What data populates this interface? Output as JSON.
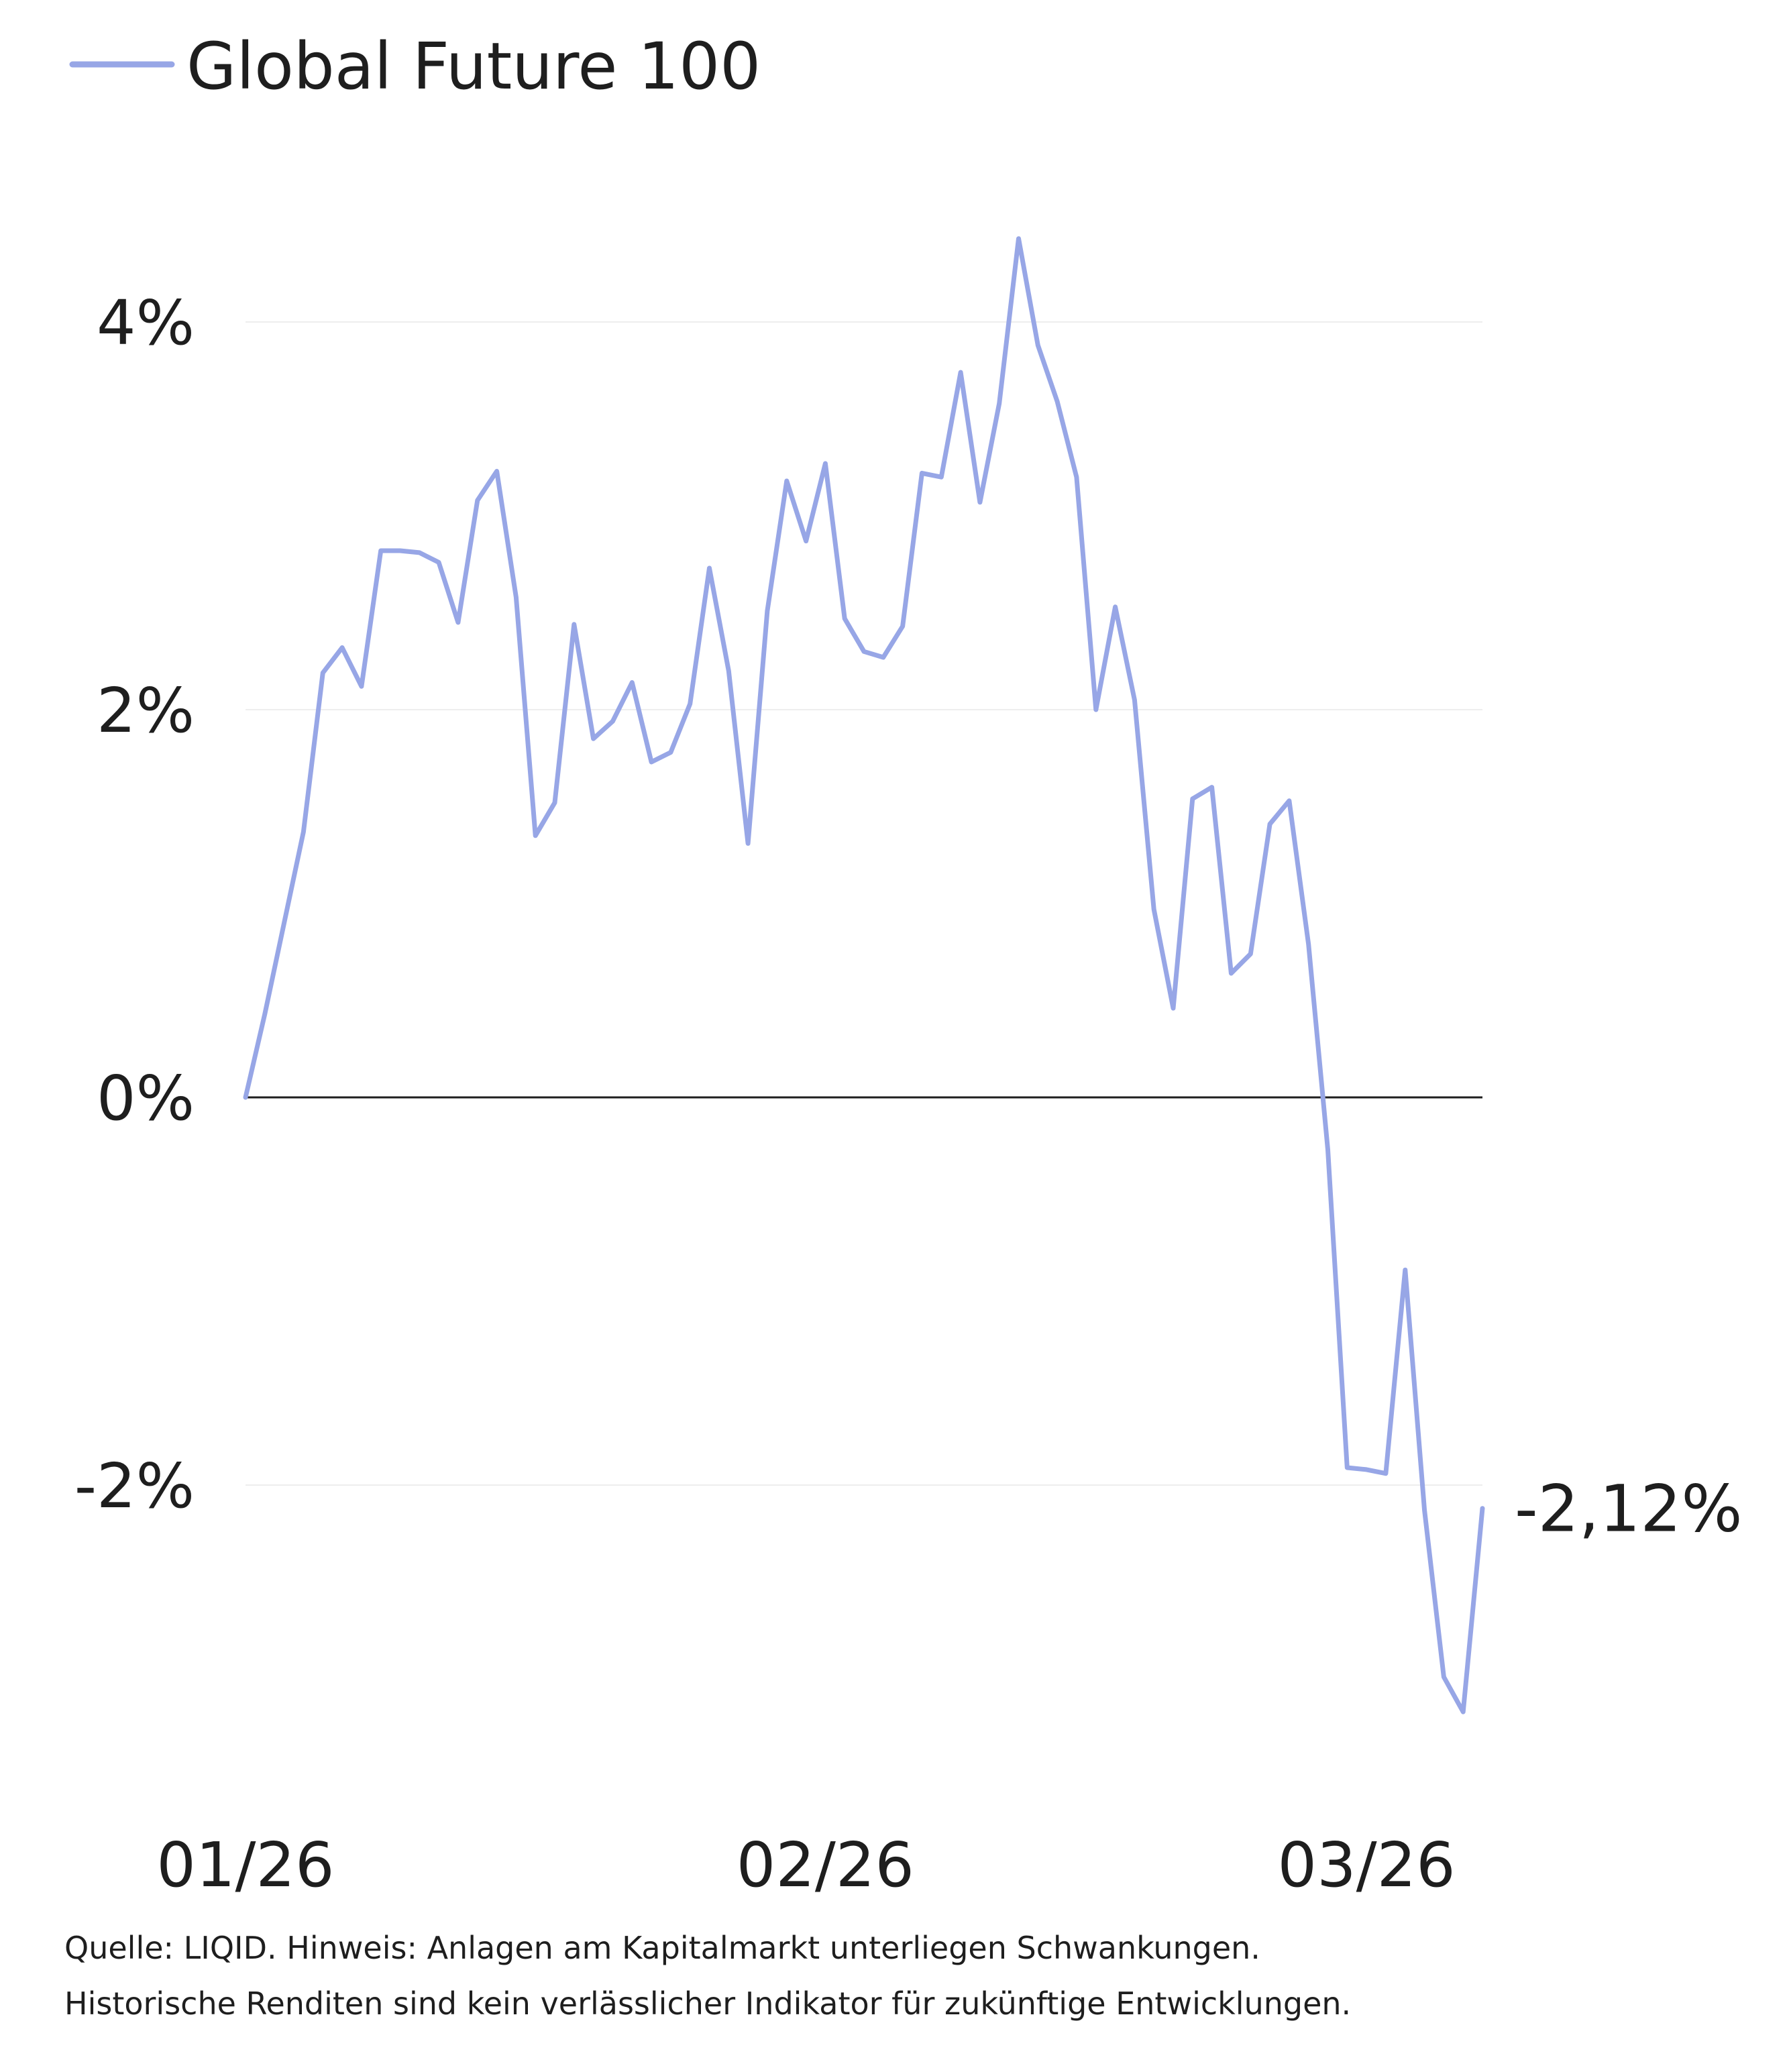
{
  "chart_data": {
    "type": "line",
    "legend": {
      "position": "top-left"
    },
    "grid": true,
    "ylim": [
      -3.55,
      4.6
    ],
    "y_ticks": [
      {
        "value": 4,
        "label": "4%"
      },
      {
        "value": 2,
        "label": "2%"
      },
      {
        "value": 0,
        "label": "0%"
      },
      {
        "value": -2,
        "label": "-2%"
      }
    ],
    "x_ticks": [
      {
        "index": 0,
        "label": "01/26"
      },
      {
        "index": 30,
        "label": "02/26"
      },
      {
        "index": 58,
        "label": "03/26"
      }
    ],
    "series": [
      {
        "name": "Global Future 100",
        "color": "#97a6e6",
        "end_label": "-2,12%",
        "values": [
          0.0,
          0.43,
          0.9,
          1.37,
          2.19,
          2.32,
          2.12,
          2.82,
          2.82,
          2.81,
          2.76,
          2.45,
          3.08,
          3.23,
          2.58,
          1.35,
          1.52,
          2.44,
          1.85,
          1.94,
          2.14,
          1.73,
          1.78,
          2.03,
          2.73,
          2.2,
          1.31,
          2.51,
          3.18,
          2.87,
          3.27,
          2.47,
          2.3,
          2.27,
          2.43,
          3.22,
          3.2,
          3.74,
          3.07,
          3.58,
          4.43,
          3.88,
          3.59,
          3.2,
          2.0,
          2.53,
          2.05,
          0.97,
          0.46,
          1.54,
          1.6,
          0.64,
          0.74,
          1.41,
          1.53,
          0.79,
          -0.27,
          -1.91,
          -1.92,
          -1.94,
          -0.89,
          -2.13,
          -2.99,
          -3.17,
          -2.12
        ]
      }
    ]
  },
  "footnote": {
    "line1": "Quelle: LIQID. Hinweis: Anlagen am Kapitalmarkt unterliegen Schwankungen.",
    "line2": "Historische Renditen sind kein verlässlicher Indikator für zukünftige Entwicklungen."
  }
}
